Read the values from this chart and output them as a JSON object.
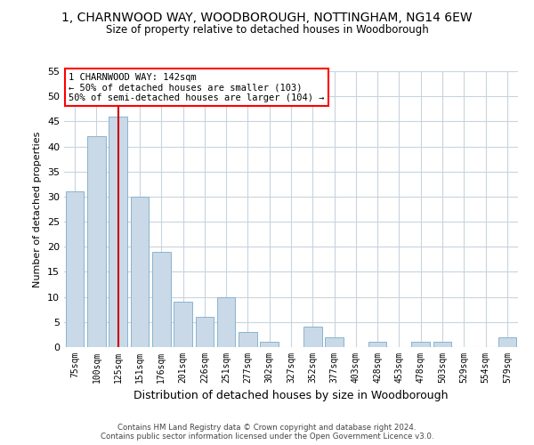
{
  "title": "1, CHARNWOOD WAY, WOODBOROUGH, NOTTINGHAM, NG14 6EW",
  "subtitle": "Size of property relative to detached houses in Woodborough",
  "xlabel": "Distribution of detached houses by size in Woodborough",
  "ylabel": "Number of detached properties",
  "bar_color": "#c9d9e8",
  "bar_edge_color": "#8ab4cc",
  "background_color": "#ffffff",
  "grid_color": "#c8d4de",
  "categories": [
    "75sqm",
    "100sqm",
    "125sqm",
    "151sqm",
    "176sqm",
    "201sqm",
    "226sqm",
    "251sqm",
    "277sqm",
    "302sqm",
    "327sqm",
    "352sqm",
    "377sqm",
    "403sqm",
    "428sqm",
    "453sqm",
    "478sqm",
    "503sqm",
    "529sqm",
    "554sqm",
    "579sqm"
  ],
  "values": [
    31,
    42,
    46,
    30,
    19,
    9,
    6,
    10,
    3,
    1,
    0,
    4,
    2,
    0,
    1,
    0,
    1,
    1,
    0,
    0,
    2
  ],
  "ylim": [
    0,
    55
  ],
  "yticks": [
    0,
    5,
    10,
    15,
    20,
    25,
    30,
    35,
    40,
    45,
    50,
    55
  ],
  "vline_x": 2,
  "vline_color": "#cc0000",
  "annotation_title": "1 CHARNWOOD WAY: 142sqm",
  "annotation_line1": "← 50% of detached houses are smaller (103)",
  "annotation_line2": "50% of semi-detached houses are larger (104) →",
  "footer1": "Contains HM Land Registry data © Crown copyright and database right 2024.",
  "footer2": "Contains public sector information licensed under the Open Government Licence v3.0."
}
